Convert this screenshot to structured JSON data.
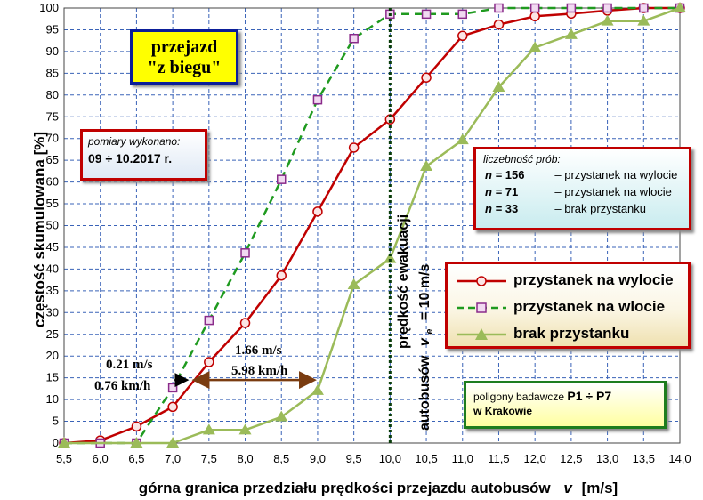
{
  "chart_data": {
    "type": "line",
    "xlabel": "górna granica przedziału prędkości przejazdu autobusów",
    "xlabel_var": "v",
    "xlabel_unit": "[m/s]",
    "ylabel": "częstość skumulowana   [%]",
    "xlim": [
      5.5,
      14.0
    ],
    "ylim": [
      0,
      100
    ],
    "x_ticks": [
      "5,5",
      "6,0",
      "6,5",
      "7,0",
      "7,5",
      "8,0",
      "8,5",
      "9,0",
      "9,5",
      "10,0",
      "10,5",
      "11,0",
      "11,5",
      "12,0",
      "12,5",
      "13,0",
      "13,5",
      "14,0"
    ],
    "y_ticks": [
      "0",
      "5",
      "10",
      "15",
      "20",
      "25",
      "30",
      "35",
      "40",
      "45",
      "50",
      "55",
      "60",
      "65",
      "70",
      "75",
      "80",
      "85",
      "90",
      "95",
      "100"
    ],
    "grid": true,
    "series": [
      {
        "name": "przystanek na wylocie",
        "color": "#c00000",
        "marker": "circle",
        "dash": "solid",
        "x": [
          5.5,
          6.0,
          6.5,
          7.0,
          7.5,
          8.0,
          8.5,
          9.0,
          9.5,
          10.0,
          10.5,
          11.0,
          11.5,
          12.0,
          12.5,
          13.0,
          13.5,
          14.0
        ],
        "y": [
          0,
          0.6,
          3.8,
          8.3,
          18.6,
          27.6,
          38.5,
          53.2,
          67.9,
          74.4,
          84.0,
          93.6,
          96.2,
          98.1,
          98.7,
          99.4,
          100,
          100
        ]
      },
      {
        "name": "przystanek na wlocie",
        "color": "#1f9a1f",
        "marker": "square",
        "dash": "dashed",
        "x": [
          5.5,
          6.0,
          6.5,
          7.0,
          7.5,
          8.0,
          8.5,
          9.0,
          9.5,
          10.0,
          10.5,
          11.0,
          11.5,
          12.0,
          12.5,
          13.0,
          13.5,
          14.0
        ],
        "y": [
          0,
          0,
          0,
          12.7,
          28.2,
          43.7,
          60.6,
          78.9,
          93.0,
          98.6,
          98.6,
          98.6,
          100,
          100,
          100,
          100,
          100,
          100
        ]
      },
      {
        "name": "brak przystanku",
        "color": "#9bbb59",
        "marker": "triangle",
        "dash": "solid",
        "x": [
          5.5,
          6.5,
          7.0,
          7.5,
          8.0,
          8.5,
          9.0,
          9.5,
          10.0,
          10.5,
          11.0,
          11.5,
          12.0,
          12.5,
          13.0,
          13.5,
          14.0
        ],
        "y": [
          0,
          0,
          0,
          3.0,
          3.0,
          6.0,
          12.1,
          36.4,
          42.4,
          63.6,
          69.7,
          81.8,
          90.9,
          93.9,
          97.0,
          97.0,
          100
        ]
      }
    ],
    "vline": {
      "x": 10.0,
      "color": "#0a3d0a",
      "label_line1": "prędkość  ewakuacji",
      "label_line2_prefix": "autobusów",
      "label_var": "v",
      "label_sub": "e",
      "label_value": "= 10 m/s"
    },
    "arrow_short": {
      "x1": 7.0,
      "x2": 7.25,
      "y": 14.5,
      "label1": "0.21 m/s",
      "label2": "0.76 km/h",
      "color": "#000000"
    },
    "arrow_long": {
      "x1": 7.25,
      "x2": 9.0,
      "y": 14.5,
      "label1": "1.66 m/s",
      "label2": "5.98 km/h",
      "color": "#7a3c10"
    }
  },
  "title_box": {
    "line1": "przejazd",
    "line2": "\"z biegu\""
  },
  "measure_box": {
    "line1": "pomiary wykonano:",
    "line2": "09 ÷ 10.2017 r."
  },
  "samples_box": {
    "header": "liczebność prób:",
    "rows": [
      {
        "n": "n =",
        "count": "156",
        "desc": "– przystanek na wylocie"
      },
      {
        "n": "n =",
        "count": " 71",
        "desc": "–  przystanek na wlocie"
      },
      {
        "n": "n =",
        "count": " 33",
        "desc": "–  brak przystanku"
      }
    ]
  },
  "polygons_box": {
    "line1_prefix": "poligony badawcze",
    "line1_range": "P1 ÷ P7",
    "line2_prefix": "w",
    "line2_city": "Krakowie"
  }
}
